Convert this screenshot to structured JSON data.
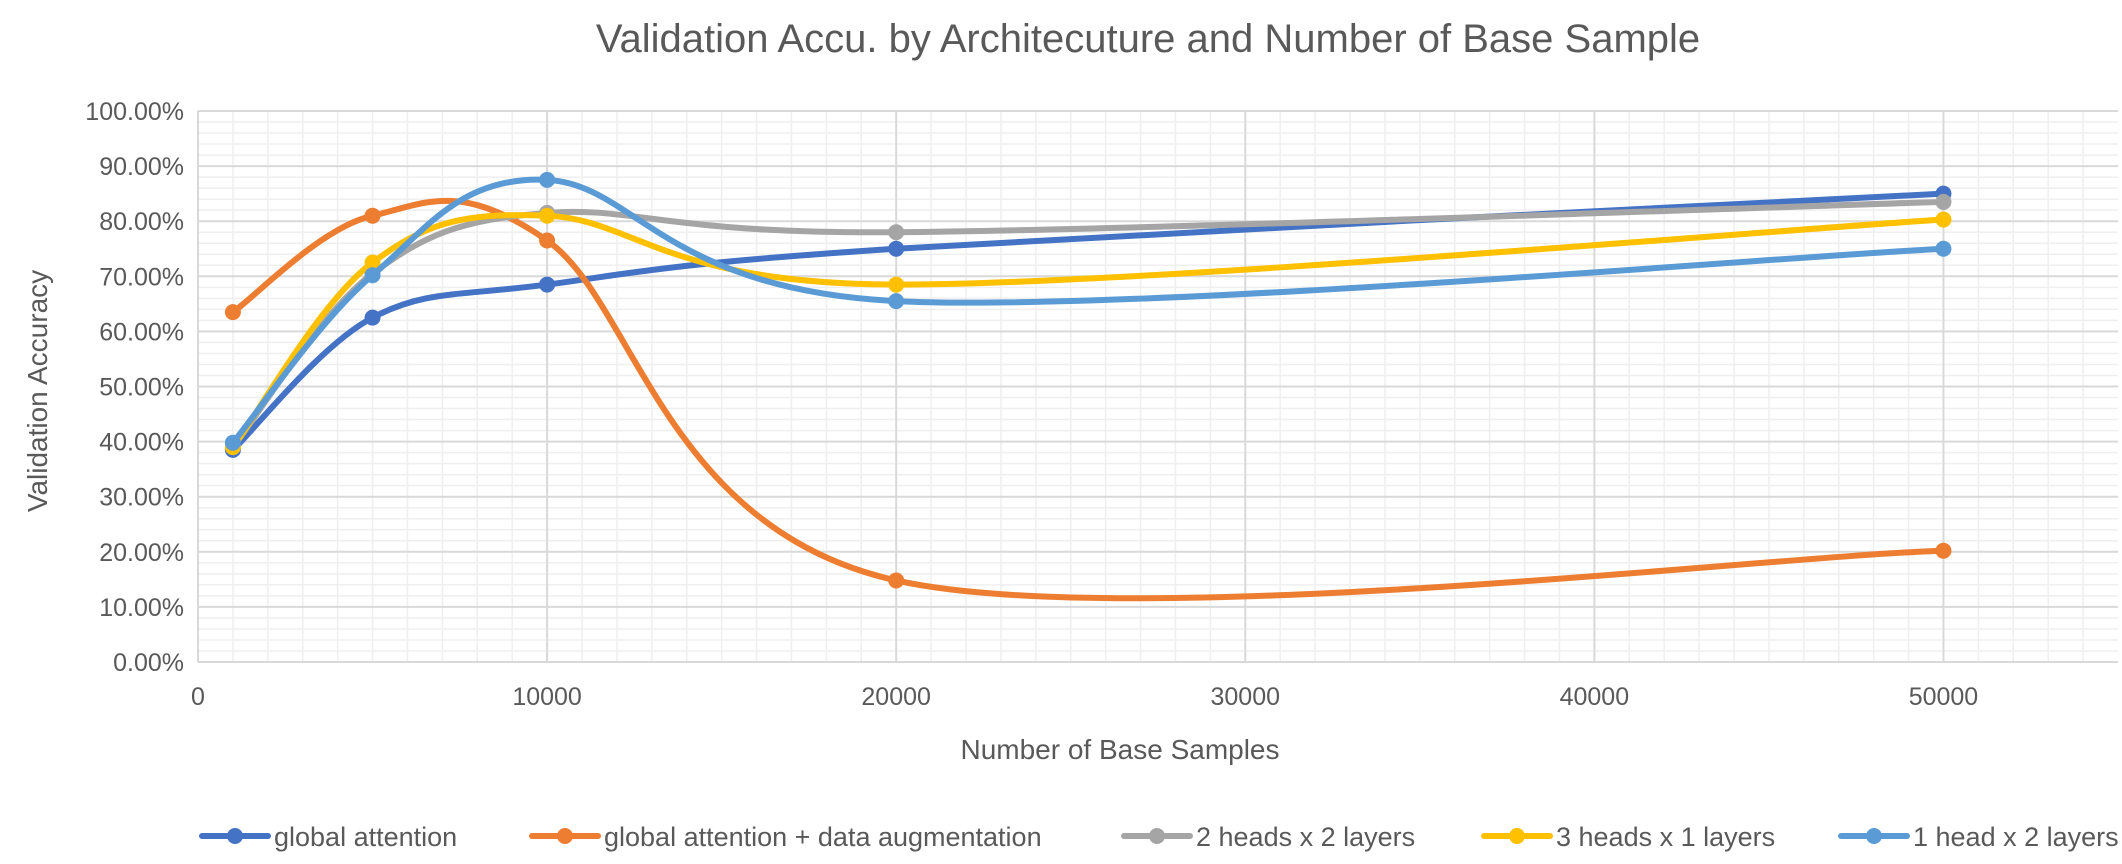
{
  "chart_data": {
    "type": "line",
    "title": "Validation Accu. by Architecuture and Number of Base Sample",
    "xlabel": "Number of Base Samples",
    "ylabel": "Validation Accuracy",
    "xlim": [
      0,
      55000
    ],
    "ylim": [
      0,
      1.0
    ],
    "x_ticks": [
      0,
      10000,
      20000,
      30000,
      40000,
      50000
    ],
    "x_tick_labels": [
      "0",
      "10000",
      "20000",
      "30000",
      "40000",
      "50000"
    ],
    "y_ticks": [
      0,
      0.1,
      0.2,
      0.3,
      0.4,
      0.5,
      0.6,
      0.7,
      0.8,
      0.9,
      1.0
    ],
    "y_tick_labels": [
      "0.00%",
      "10.00%",
      "20.00%",
      "30.00%",
      "40.00%",
      "50.00%",
      "60.00%",
      "70.00%",
      "80.00%",
      "90.00%",
      "100.00%"
    ],
    "smooth": true,
    "grid": "major and minor",
    "legend_position": "bottom",
    "x": [
      1000,
      5000,
      10000,
      20000,
      50000
    ],
    "series": [
      {
        "name": "global attention",
        "color": "#4472C4",
        "values": [
          0.385,
          0.625,
          0.685,
          0.75,
          0.85
        ]
      },
      {
        "name": "global attention + data augmentation",
        "color": "#ED7D31",
        "values": [
          0.635,
          0.81,
          0.765,
          0.148,
          0.202
        ]
      },
      {
        "name": "2 heads x 2 layers",
        "color": "#A5A5A5",
        "values": [
          0.39,
          0.705,
          0.815,
          0.78,
          0.835
        ]
      },
      {
        "name": "3 heads x 1 layers",
        "color": "#FFC000",
        "values": [
          0.39,
          0.725,
          0.81,
          0.685,
          0.803
        ]
      },
      {
        "name": "1 head x 2 layers",
        "color": "#5B9BD5",
        "values": [
          0.398,
          0.702,
          0.875,
          0.655,
          0.75
        ]
      }
    ]
  }
}
